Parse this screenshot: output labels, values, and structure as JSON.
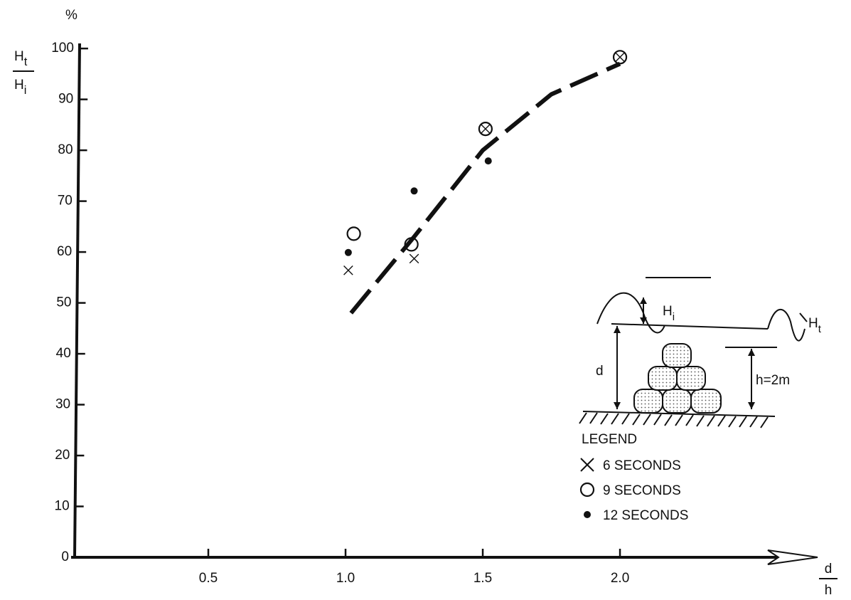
{
  "chart_data": {
    "type": "scatter",
    "y_unit": "%",
    "y_label": {
      "numerator": [
        "H",
        "t"
      ],
      "denominator": [
        "H",
        "i"
      ]
    },
    "x_label": {
      "numerator": "d",
      "denominator": "h"
    },
    "xlim": [
      0,
      2.72
    ],
    "ylim": [
      0,
      101
    ],
    "xticks": [
      0.5,
      {
        "value": 1,
        "label": "1.0"
      },
      1.5,
      {
        "value": 2,
        "label": "2.0"
      }
    ],
    "yticks": [
      0,
      10,
      20,
      30,
      40,
      50,
      60,
      70,
      80,
      90,
      100
    ],
    "curve": {
      "style": "dashed",
      "color": "#111111",
      "x": [
        1.02,
        1.25,
        1.5,
        1.75,
        2.0
      ],
      "values": [
        48,
        63,
        80,
        91,
        97
      ]
    },
    "series": [
      {
        "name": "6 SECONDS",
        "marker": "x",
        "color": "#111111",
        "x": [
          1.01,
          1.25,
          1.51,
          2.0
        ],
        "values": [
          56.4,
          58.7,
          84.2,
          98.3
        ]
      },
      {
        "name": "9 SECONDS",
        "marker": "o",
        "color": "#111111",
        "x": [
          1.03,
          1.24,
          1.51,
          2.0
        ],
        "values": [
          63.6,
          61.5,
          84.2,
          98.3
        ]
      },
      {
        "name": "12 SECONDS",
        "marker": "dot",
        "color": "#111111",
        "x": [
          1.01,
          1.25,
          1.52
        ],
        "values": [
          59.9,
          72,
          77.9
        ]
      }
    ],
    "legend_title": "LEGEND",
    "inset": {
      "incident": [
        "H",
        "i"
      ],
      "transmitted": [
        "H",
        "t"
      ],
      "depth": "d",
      "height": "h=2m"
    }
  }
}
